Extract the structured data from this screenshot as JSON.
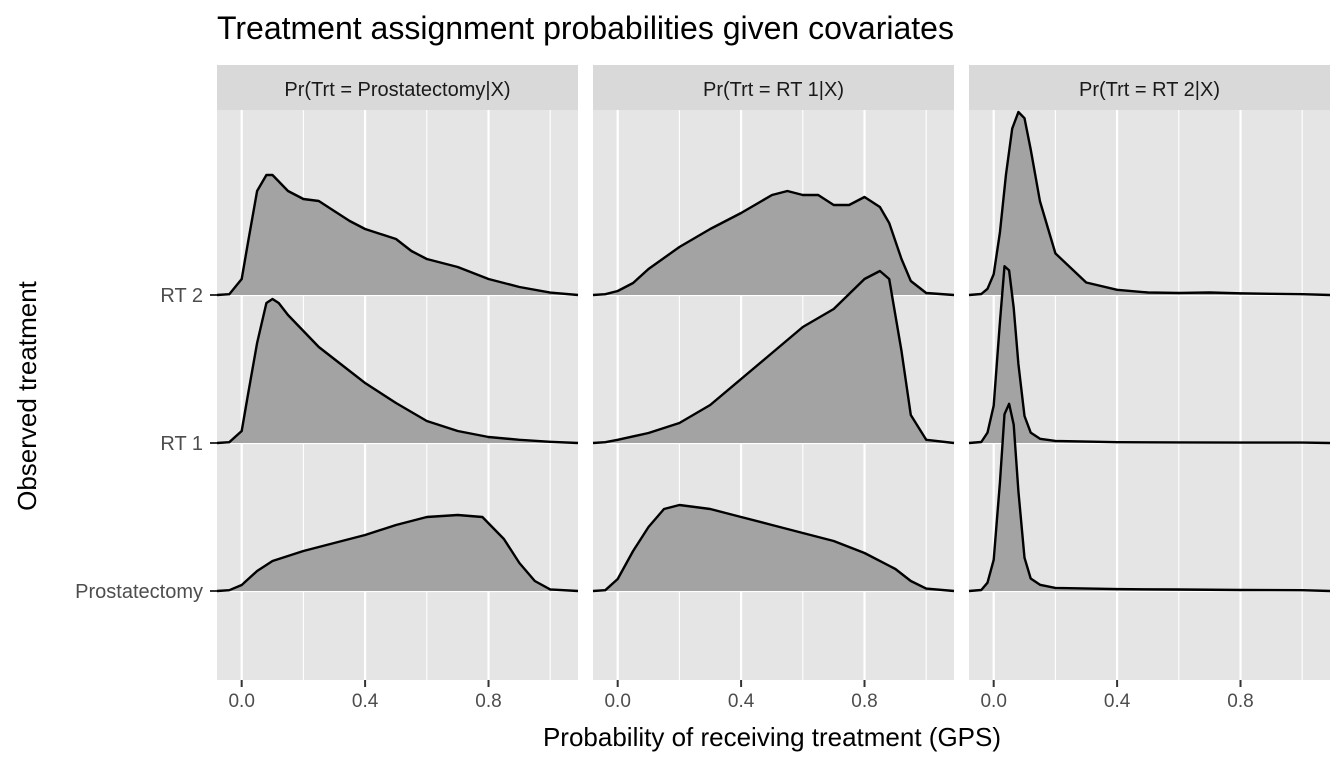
{
  "chart_data": {
    "type": "ridgeline",
    "title": "Treatment assignment probabilities given covariates",
    "xlabel": "Probability of receiving treatment (GPS)",
    "ylabel": "Observed treatment",
    "xlim": [
      -0.08,
      1.09
    ],
    "x_ticks": [
      0.0,
      0.2,
      0.4,
      0.6,
      0.8,
      1.0
    ],
    "x_tick_labels": [
      "0.0",
      "",
      "0.4",
      "",
      "0.8",
      ""
    ],
    "categories": [
      "Prostatectomy",
      "RT 1",
      "RT 2"
    ],
    "grid": true,
    "fill_color": "#A3A3A3",
    "line_color": "#000000",
    "panel_background": "#E5E5E5",
    "strip_background": "#D9D9D9",
    "facets": [
      {
        "label": "Pr(Trt = Prostatectomy|X)",
        "series": [
          {
            "name": "Prostatectomy",
            "x": [
              -0.08,
              -0.04,
              0.0,
              0.05,
              0.1,
              0.2,
              0.3,
              0.4,
              0.5,
              0.6,
              0.7,
              0.78,
              0.85,
              0.9,
              0.95,
              1.0,
              1.09
            ],
            "y": [
              0,
              0.02,
              0.15,
              0.5,
              0.75,
              1.0,
              1.2,
              1.4,
              1.65,
              1.85,
              1.9,
              1.85,
              1.3,
              0.7,
              0.25,
              0.04,
              0
            ]
          },
          {
            "name": "RT 1",
            "x": [
              -0.08,
              -0.04,
              0.0,
              0.02,
              0.05,
              0.08,
              0.1,
              0.12,
              0.15,
              0.2,
              0.25,
              0.3,
              0.4,
              0.5,
              0.6,
              0.7,
              0.8,
              0.9,
              1.0,
              1.09
            ],
            "y": [
              0,
              0.02,
              0.3,
              1.2,
              2.5,
              3.5,
              3.6,
              3.5,
              3.2,
              2.8,
              2.4,
              2.1,
              1.5,
              1.0,
              0.55,
              0.3,
              0.15,
              0.08,
              0.03,
              0
            ]
          },
          {
            "name": "RT 2",
            "x": [
              -0.08,
              -0.04,
              0.0,
              0.02,
              0.05,
              0.08,
              0.1,
              0.15,
              0.2,
              0.25,
              0.3,
              0.35,
              0.4,
              0.5,
              0.55,
              0.6,
              0.7,
              0.8,
              0.9,
              1.0,
              1.09
            ],
            "y": [
              0,
              0.02,
              0.4,
              1.3,
              2.6,
              3.0,
              3.0,
              2.6,
              2.4,
              2.35,
              2.1,
              1.85,
              1.65,
              1.4,
              1.1,
              0.9,
              0.7,
              0.4,
              0.2,
              0.06,
              0
            ]
          }
        ]
      },
      {
        "label": "Pr(Trt = RT 1|X)",
        "series": [
          {
            "name": "Prostatectomy",
            "x": [
              -0.08,
              -0.04,
              0.0,
              0.05,
              0.1,
              0.15,
              0.2,
              0.3,
              0.4,
              0.5,
              0.6,
              0.7,
              0.8,
              0.9,
              0.95,
              1.0,
              1.09
            ],
            "y": [
              0,
              0.02,
              0.3,
              1.0,
              1.6,
              2.05,
              2.15,
              2.05,
              1.85,
              1.65,
              1.45,
              1.25,
              0.95,
              0.55,
              0.25,
              0.06,
              0
            ]
          },
          {
            "name": "RT 1",
            "x": [
              -0.08,
              -0.04,
              0.0,
              0.1,
              0.2,
              0.3,
              0.4,
              0.5,
              0.6,
              0.7,
              0.8,
              0.85,
              0.88,
              0.92,
              0.95,
              1.0,
              1.09
            ],
            "y": [
              0,
              0.02,
              0.08,
              0.25,
              0.5,
              0.95,
              1.6,
              2.25,
              2.9,
              3.35,
              4.1,
              4.3,
              4.1,
              2.3,
              0.7,
              0.08,
              0
            ]
          },
          {
            "name": "RT 2",
            "x": [
              -0.08,
              -0.04,
              0.0,
              0.05,
              0.1,
              0.2,
              0.3,
              0.4,
              0.5,
              0.55,
              0.6,
              0.65,
              0.7,
              0.75,
              0.8,
              0.85,
              0.88,
              0.92,
              0.95,
              1.0,
              1.09
            ],
            "y": [
              0,
              0.02,
              0.1,
              0.3,
              0.65,
              1.2,
              1.65,
              2.05,
              2.5,
              2.6,
              2.5,
              2.5,
              2.25,
              2.25,
              2.45,
              2.2,
              1.8,
              0.9,
              0.35,
              0.05,
              0
            ]
          }
        ]
      },
      {
        "label": "Pr(Trt = RT 2|X)",
        "series": [
          {
            "name": "Prostatectomy",
            "x": [
              -0.08,
              -0.04,
              -0.02,
              0.0,
              0.02,
              0.035,
              0.05,
              0.065,
              0.08,
              0.1,
              0.12,
              0.15,
              0.2,
              0.4,
              0.6,
              0.8,
              1.0,
              1.09
            ],
            "y": [
              0,
              0.05,
              0.4,
              1.5,
              5.2,
              8.5,
              9.0,
              8.0,
              4.8,
              1.6,
              0.6,
              0.3,
              0.15,
              0.09,
              0.07,
              0.05,
              0.04,
              0
            ]
          },
          {
            "name": "RT 1",
            "x": [
              -0.08,
              -0.04,
              -0.02,
              0.0,
              0.02,
              0.035,
              0.05,
              0.065,
              0.08,
              0.1,
              0.12,
              0.15,
              0.2,
              0.4,
              0.6,
              0.8,
              1.0,
              1.09
            ],
            "y": [
              0,
              0.05,
              0.5,
              1.8,
              5.8,
              8.5,
              8.3,
              6.5,
              3.8,
              1.3,
              0.5,
              0.2,
              0.1,
              0.04,
              0.03,
              0.02,
              0.02,
              0
            ]
          },
          {
            "name": "RT 2",
            "x": [
              -0.08,
              -0.04,
              -0.02,
              0.0,
              0.02,
              0.04,
              0.06,
              0.08,
              0.1,
              0.12,
              0.15,
              0.2,
              0.3,
              0.4,
              0.5,
              0.6,
              0.7,
              0.8,
              0.9,
              1.0,
              1.09
            ],
            "y": [
              0,
              0.05,
              0.3,
              1.0,
              3.0,
              5.8,
              8.0,
              8.8,
              8.5,
              7.0,
              4.5,
              2.0,
              0.6,
              0.25,
              0.12,
              0.1,
              0.12,
              0.08,
              0.06,
              0.04,
              0
            ]
          }
        ]
      }
    ]
  }
}
